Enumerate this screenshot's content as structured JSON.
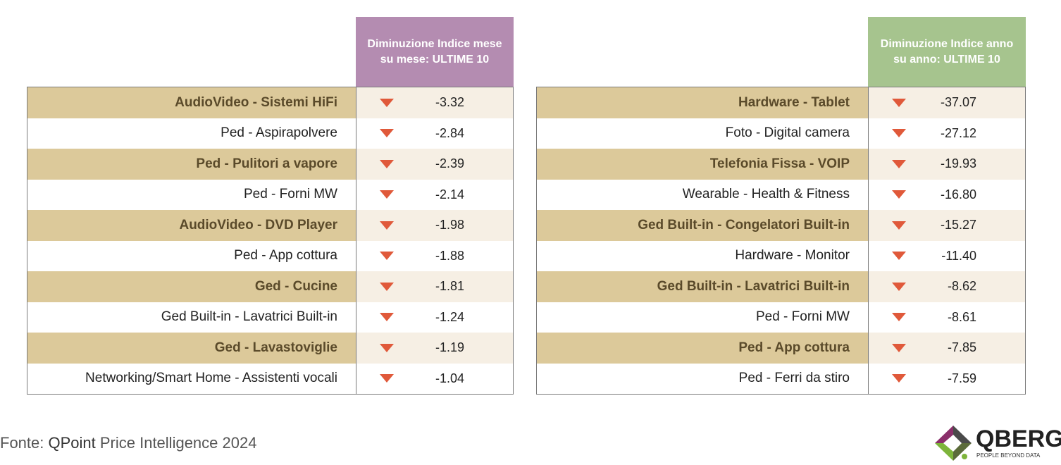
{
  "colors": {
    "header_left": "#b48cb1",
    "header_right": "#a6c48e",
    "row_label_band": "#dcc99a",
    "row_value_band": "#f6efe4",
    "down_arrow": "#e0593a"
  },
  "chart_data": [
    {
      "type": "table",
      "header": "Diminuzione Indice mese su mese: ULTIME 10",
      "rows": [
        {
          "label": "AudioVideo - Sistemi HiFi",
          "value": "-3.32"
        },
        {
          "label": "Ped - Aspirapolvere",
          "value": "-2.84"
        },
        {
          "label": "Ped - Pulitori a vapore",
          "value": "-2.39"
        },
        {
          "label": "Ped - Forni MW",
          "value": "-2.14"
        },
        {
          "label": "AudioVideo - DVD Player",
          "value": "-1.98"
        },
        {
          "label": "Ped - App cottura",
          "value": "-1.88"
        },
        {
          "label": "Ged - Cucine",
          "value": "-1.81"
        },
        {
          "label": "Ged Built-in - Lavatrici Built-in",
          "value": "-1.24"
        },
        {
          "label": "Ged - Lavastoviglie",
          "value": "-1.19"
        },
        {
          "label": "Networking/Smart Home - Assistenti vocali",
          "value": "-1.04"
        }
      ]
    },
    {
      "type": "table",
      "header": "Diminuzione Indice anno su anno: ULTIME 10",
      "rows": [
        {
          "label": "Hardware - Tablet",
          "value": "-37.07"
        },
        {
          "label": "Foto - Digital camera",
          "value": "-27.12"
        },
        {
          "label": "Telefonia Fissa - VOIP",
          "value": "-19.93"
        },
        {
          "label": "Wearable - Health & Fitness",
          "value": "-16.80"
        },
        {
          "label": "Ged Built-in - Congelatori Built-in",
          "value": "-15.27"
        },
        {
          "label": "Hardware - Monitor",
          "value": "-11.40"
        },
        {
          "label": "Ged Built-in - Lavatrici Built-in",
          "value": "-8.62"
        },
        {
          "label": "Ped - Forni MW",
          "value": "-8.61"
        },
        {
          "label": "Ped - App cottura",
          "value": "-7.85"
        },
        {
          "label": "Ped - Ferri da stiro",
          "value": "-7.59"
        }
      ]
    }
  ],
  "footer": {
    "source_prefix": "Fonte: ",
    "source_brand": "QPoint",
    "source_rest": " Price Intelligence 2024"
  },
  "logo": {
    "icon": "qberg-diamond-logo",
    "wordmark": "QBERG",
    "tagline": "PEOPLE BEYOND DATA"
  }
}
